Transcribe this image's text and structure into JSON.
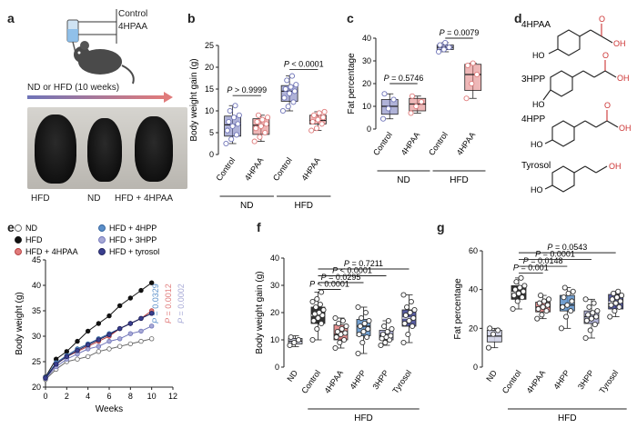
{
  "panels": {
    "a": {
      "label": "a",
      "treatment": [
        "Control",
        "4HPAA"
      ],
      "diet_caption": "ND or HFD (10 weeks)",
      "photo_labels": [
        "HFD",
        "ND",
        "HFD + 4HPAA"
      ]
    },
    "d": {
      "label": "d",
      "compounds": [
        "4HPAA",
        "3HPP",
        "4HPP",
        "Tyrosol"
      ],
      "atom_ho": "HO",
      "atom_oh": "OH",
      "atom_o": "O"
    }
  },
  "colors": {
    "control": "#6f74b8",
    "hpaa": "#e07b7b",
    "black": "#111111",
    "hpp4": "#5b8fc9",
    "hpp3": "#a7a9d6",
    "tyrosol": "#3a3f8f",
    "nd_grey": "#cccfe4"
  },
  "chart_data": [
    {
      "id": "b",
      "label": "b",
      "type": "box",
      "ylabel": "Body weight gain (g)",
      "ylim": [
        0,
        25
      ],
      "yticks": [
        0,
        5,
        10,
        15,
        20,
        25
      ],
      "categories": [
        "Control",
        "4HPAA",
        "Control",
        "4HPAA"
      ],
      "groups": [
        {
          "name": "ND",
          "span": [
            0,
            1
          ]
        },
        {
          "name": "HFD",
          "span": [
            2,
            3
          ]
        }
      ],
      "boxes": [
        {
          "min": 2.5,
          "q1": 4.2,
          "median": 6.8,
          "q3": 8.8,
          "max": 11.2
        },
        {
          "min": 3.0,
          "q1": 4.6,
          "median": 6.7,
          "q3": 8.2,
          "max": 9.0
        },
        {
          "min": 10.0,
          "q1": 12.2,
          "median": 14.5,
          "q3": 15.8,
          "max": 18.0
        },
        {
          "min": 5.5,
          "q1": 7.0,
          "median": 7.8,
          "q3": 9.0,
          "max": 9.8
        }
      ],
      "points": [
        [
          2.5,
          3.5,
          4.5,
          5.5,
          6.5,
          7,
          7.5,
          8.5,
          9,
          10,
          11.2
        ],
        [
          3.0,
          4.0,
          5.0,
          6.0,
          6.5,
          7,
          7.5,
          8.0,
          8.5,
          9.0
        ],
        [
          10,
          11,
          12,
          13,
          14,
          14.5,
          15,
          15.5,
          16,
          17,
          18
        ],
        [
          5.5,
          6.0,
          7.0,
          7.5,
          8.0,
          8.5,
          9.0,
          9.5,
          9.8
        ]
      ],
      "stats": [
        {
          "text": "P > 0.9999",
          "pair": [
            0,
            1
          ],
          "y": 13.5
        },
        {
          "text": "P < 0.0001",
          "pair": [
            2,
            3
          ],
          "y": 19.5
        }
      ]
    },
    {
      "id": "c",
      "label": "c",
      "type": "box",
      "ylabel": "Fat percentage",
      "ylim": [
        0,
        40
      ],
      "yticks": [
        0,
        10,
        20,
        30,
        40
      ],
      "categories": [
        "Control",
        "4HPAA",
        "Control",
        "4HPAA"
      ],
      "groups": [
        {
          "name": "ND",
          "span": [
            0,
            1
          ]
        },
        {
          "name": "HFD",
          "span": [
            2,
            3
          ]
        }
      ],
      "boxes": [
        {
          "min": 4.5,
          "q1": 6.5,
          "median": 10.0,
          "q3": 13.0,
          "max": 15.5
        },
        {
          "min": 7.0,
          "q1": 8.0,
          "median": 11.0,
          "q3": 13.5,
          "max": 14.5
        },
        {
          "min": 34.0,
          "q1": 35.0,
          "median": 36.0,
          "q3": 37.0,
          "max": 38.0
        },
        {
          "min": 13.5,
          "q1": 17.0,
          "median": 24.0,
          "q3": 28.5,
          "max": 29.0
        }
      ],
      "points": [
        [
          4.5,
          9,
          13,
          15.5
        ],
        [
          7,
          10,
          12,
          14.5
        ],
        [
          34,
          35,
          36,
          37,
          38
        ],
        [
          13.5,
          20,
          24,
          28,
          29
        ]
      ],
      "stats": [
        {
          "text": "P = 0.5746",
          "pair": [
            0,
            1
          ],
          "y": 20
        },
        {
          "text": "P = 0.0079",
          "pair": [
            2,
            3
          ],
          "y": 40
        }
      ]
    },
    {
      "id": "e",
      "label": "e",
      "type": "line",
      "xlabel": "Weeks",
      "ylabel": "Body weight (g)",
      "xlim": [
        0,
        12
      ],
      "ylim": [
        20,
        45
      ],
      "xticks": [
        0,
        2,
        4,
        6,
        8,
        10,
        12
      ],
      "yticks": [
        20,
        25,
        30,
        35,
        40,
        45
      ],
      "x": [
        0,
        1,
        2,
        3,
        4,
        5,
        6,
        7,
        8,
        9,
        10
      ],
      "series": [
        {
          "name": "ND",
          "color": "#ffffff",
          "stroke": "#666666",
          "values": [
            21.5,
            23.5,
            25.0,
            25.5,
            26.0,
            27.0,
            27.5,
            28.0,
            28.5,
            29.0,
            29.5
          ]
        },
        {
          "name": "HFD",
          "color": "#111111",
          "stroke": "#111111",
          "values": [
            22.0,
            25.5,
            27.0,
            29.0,
            31.0,
            32.5,
            34.0,
            36.0,
            37.5,
            39.0,
            40.5
          ]
        },
        {
          "name": "HFD + 4HPAA",
          "color": "#e07b7b",
          "stroke": "#b33b3b",
          "values": [
            21.8,
            24.5,
            26.0,
            27.0,
            28.0,
            29.0,
            30.0,
            31.5,
            32.5,
            33.5,
            35.0
          ]
        },
        {
          "name": "HFD + 4HPP",
          "color": "#5b8fc9",
          "stroke": "#2f5f9a",
          "values": [
            21.9,
            24.8,
            26.2,
            27.5,
            28.5,
            29.5,
            30.5,
            31.5,
            32.5,
            33.5,
            34.5
          ]
        },
        {
          "name": "HFD + 3HPP",
          "color": "#a7a9d6",
          "stroke": "#6f74b8",
          "values": [
            21.7,
            24.0,
            25.5,
            26.5,
            27.5,
            28.0,
            29.0,
            29.5,
            30.5,
            31.0,
            32.0
          ]
        },
        {
          "name": "HFD + tyrosol",
          "color": "#3a3f8f",
          "stroke": "#1c1f5a",
          "values": [
            21.8,
            24.5,
            26.0,
            27.2,
            28.3,
            29.3,
            30.3,
            31.5,
            32.5,
            33.5,
            34.5
          ]
        }
      ],
      "annotations": [
        {
          "text": "P = 0.0329",
          "color": "#5b8fc9"
        },
        {
          "text": "P = 0.0012",
          "color": "#e07b7b"
        },
        {
          "text": "P = 0.0002",
          "color": "#a7a9d6"
        }
      ]
    },
    {
      "id": "f",
      "label": "f",
      "type": "box",
      "ylabel": "Body weight gain (g)",
      "ylim": [
        0,
        40
      ],
      "yticks": [
        0,
        10,
        20,
        30,
        40
      ],
      "categories": [
        "ND",
        "Control",
        "4HPAA",
        "4HPP",
        "3HPP",
        "Tyrosol"
      ],
      "groups": [
        {
          "name": "HFD",
          "span": [
            1,
            5
          ]
        }
      ],
      "boxes": [
        {
          "min": 7.5,
          "q1": 8.5,
          "median": 9.5,
          "q3": 10.5,
          "max": 11.5
        },
        {
          "min": 10.0,
          "q1": 16.0,
          "median": 19.0,
          "q3": 22.0,
          "max": 27.5
        },
        {
          "min": 7.0,
          "q1": 10.0,
          "median": 12.0,
          "q3": 15.5,
          "max": 18.0
        },
        {
          "min": 5.0,
          "q1": 11.5,
          "median": 15.0,
          "q3": 17.5,
          "max": 22.0
        },
        {
          "min": 8.0,
          "q1": 10.0,
          "median": 11.5,
          "q3": 13.5,
          "max": 17.0
        },
        {
          "min": 9.0,
          "q1": 15.0,
          "median": 18.0,
          "q3": 21.0,
          "max": 26.5
        }
      ],
      "points": [
        [
          8,
          9,
          10,
          11
        ],
        [
          10,
          14,
          16,
          17,
          18,
          19,
          19.5,
          20,
          21,
          22,
          23,
          24,
          25,
          27.5
        ],
        [
          7,
          9,
          10,
          11,
          12,
          12.5,
          13,
          14,
          15,
          16,
          17,
          18
        ],
        [
          5,
          9,
          11,
          12,
          13,
          14,
          15,
          16,
          17,
          18,
          20,
          22
        ],
        [
          8,
          9,
          10,
          10.5,
          11,
          11.5,
          12,
          13,
          14,
          15,
          17
        ],
        [
          9,
          12,
          15,
          16,
          17,
          18,
          19,
          20,
          21,
          22,
          24,
          26.5
        ]
      ],
      "stats": [
        {
          "text": "P < 0.0001",
          "pair": [
            1,
            2
          ],
          "y": 28.5
        },
        {
          "text": "P = 0.0295",
          "pair": [
            1,
            3
          ],
          "y": 31.0
        },
        {
          "text": "P < 0.0001",
          "pair": [
            1,
            4
          ],
          "y": 33.5
        },
        {
          "text": "P = 0.7211",
          "pair": [
            1,
            5
          ],
          "y": 36.0
        }
      ]
    },
    {
      "id": "g",
      "label": "g",
      "type": "box",
      "ylabel": "Fat percentage",
      "ylim": [
        0,
        60
      ],
      "yticks": [
        0,
        20,
        40,
        60
      ],
      "categories": [
        "ND",
        "Control",
        "4HPAA",
        "4HPP",
        "3HPP",
        "Tyrosol"
      ],
      "groups": [
        {
          "name": "HFD",
          "span": [
            1,
            5
          ]
        }
      ],
      "boxes": [
        {
          "min": 10.0,
          "q1": 13.0,
          "median": 16.0,
          "q3": 19.0,
          "max": 20.0
        },
        {
          "min": 30.0,
          "q1": 35.0,
          "median": 38.5,
          "q3": 42.0,
          "max": 46.0
        },
        {
          "min": 25.0,
          "q1": 28.5,
          "median": 31.0,
          "q3": 33.5,
          "max": 37.0
        },
        {
          "min": 20.0,
          "q1": 29.0,
          "median": 32.0,
          "q3": 37.0,
          "max": 41.0
        },
        {
          "min": 15.0,
          "q1": 22.5,
          "median": 26.0,
          "q3": 29.0,
          "max": 35.0
        },
        {
          "min": 26.0,
          "q1": 30.0,
          "median": 33.5,
          "q3": 37.5,
          "max": 39.0
        }
      ],
      "points": [
        [
          10,
          17,
          19,
          20
        ],
        [
          30,
          34,
          36,
          37,
          38,
          39,
          40,
          41,
          42,
          44,
          46
        ],
        [
          25,
          27,
          29,
          30,
          31,
          32,
          33,
          34,
          35,
          37
        ],
        [
          20,
          26,
          29,
          31,
          32,
          34,
          36,
          38,
          39,
          41
        ],
        [
          15,
          19,
          22,
          24,
          25,
          26,
          27,
          28,
          29,
          31,
          33,
          35
        ],
        [
          26,
          29,
          31,
          32,
          33,
          34,
          35,
          36,
          37,
          38,
          39
        ]
      ],
      "stats": [
        {
          "text": "P = 0.001",
          "pair": [
            1,
            2
          ],
          "y": 48.5
        },
        {
          "text": "P = 0.0148",
          "pair": [
            1,
            3
          ],
          "y": 52.0
        },
        {
          "text": "P = 0.0001",
          "pair": [
            1,
            4
          ],
          "y": 55.5
        },
        {
          "text": "P = 0.0543",
          "pair": [
            1,
            5
          ],
          "y": 59.0
        }
      ]
    }
  ]
}
